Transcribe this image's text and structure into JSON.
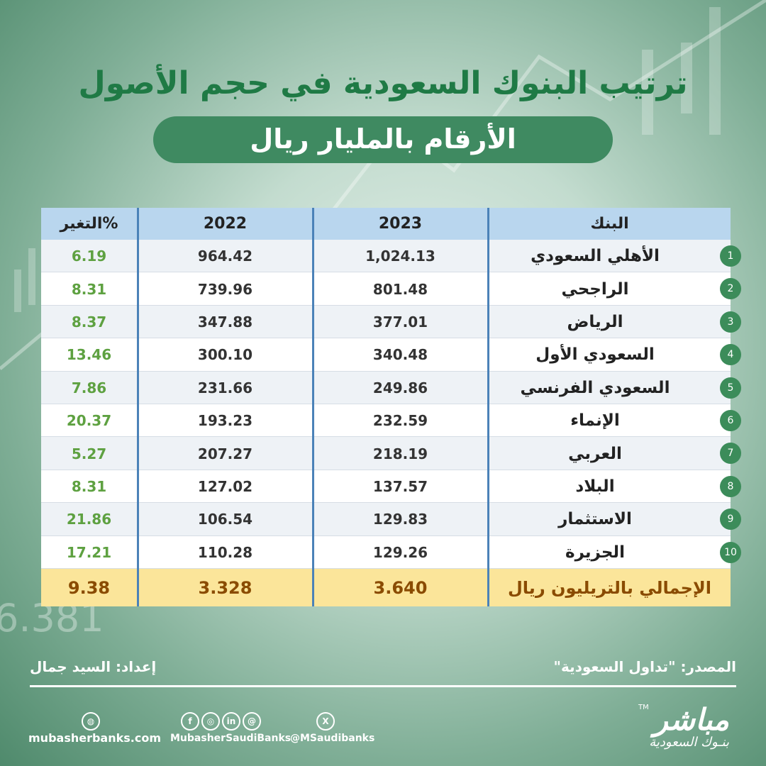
{
  "header": {
    "title": "ترتيب البنوك السعودية في حجم الأصول",
    "subtitle": "الأرقام بالمليار ريال"
  },
  "background_number": "6.381",
  "table": {
    "columns": [
      "البنك",
      "2023",
      "2022",
      "التغير%"
    ],
    "rows": [
      [
        "1",
        "الأهلي السعودي",
        "1,024.13",
        "964.42",
        "6.19"
      ],
      [
        "2",
        "الراجحي",
        "801.48",
        "739.96",
        "8.31"
      ],
      [
        "3",
        "الرياض",
        "377.01",
        "347.88",
        "8.37"
      ],
      [
        "4",
        "السعودي الأول",
        "340.48",
        "300.10",
        "13.46"
      ],
      [
        "5",
        "السعودي الفرنسي",
        "249.86",
        "231.66",
        "7.86"
      ],
      [
        "6",
        "الإنماء",
        "232.59",
        "193.23",
        "20.37"
      ],
      [
        "7",
        "العربي",
        "218.19",
        "207.27",
        "5.27"
      ],
      [
        "8",
        "البلاد",
        "137.57",
        "127.02",
        "8.31"
      ],
      [
        "9",
        "الاستثمار",
        "129.83",
        "106.54",
        "21.86"
      ],
      [
        "10",
        "الجزيرة",
        "129.26",
        "110.28",
        "17.21"
      ]
    ],
    "total": [
      "الإجمالي بالتريليون ريال",
      "3.640",
      "3.328",
      "9.38"
    ]
  },
  "footer": {
    "source": "المصدر: \"تداول السعودية\"",
    "author": "إعداد: السيد جمال",
    "website": "mubasherbanks.com",
    "social": "MubasherSaudiBanks",
    "x_handle": "@MSaudibanks",
    "logo": "مباشر",
    "logo_sub": "بنـوك السعودية",
    "trademark": "TM"
  }
}
